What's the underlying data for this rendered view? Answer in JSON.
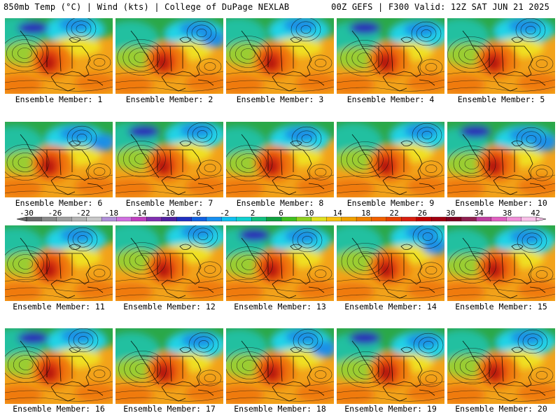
{
  "header": {
    "left": "850mb Temp (°C) | Wind (kts) | College of DuPage NEXLAB",
    "right": "00Z GEFS | F300 Valid: 12Z SAT JUN 21 2025"
  },
  "members": [
    "Ensemble Member: 1",
    "Ensemble Member: 2",
    "Ensemble Member: 3",
    "Ensemble Member: 4",
    "Ensemble Member: 5",
    "Ensemble Member: 6",
    "Ensemble Member: 7",
    "Ensemble Member: 8",
    "Ensemble Member: 9",
    "Ensemble Member: 10",
    "Ensemble Member: 11",
    "Ensemble Member: 12",
    "Ensemble Member: 13",
    "Ensemble Member: 14",
    "Ensemble Member: 15",
    "Ensemble Member: 16",
    "Ensemble Member: 17",
    "Ensemble Member: 18",
    "Ensemble Member: 19",
    "Ensemble Member: 20"
  ],
  "colorbar": {
    "labels": [
      "-30",
      "-26",
      "-22",
      "-18",
      "-14",
      "-10",
      "-6",
      "-2",
      "2",
      "6",
      "10",
      "14",
      "18",
      "22",
      "26",
      "30",
      "34",
      "38",
      "42"
    ],
    "colors": [
      "#6b6b6b",
      "#8a8a8a",
      "#a0a0a0",
      "#b4b4b4",
      "#c8c8c8",
      "#b090d8",
      "#d070e0",
      "#c040c0",
      "#8030b0",
      "#5020a0",
      "#2030c0",
      "#1060e0",
      "#1890f0",
      "#10c0f0",
      "#10d0d0",
      "#10c080",
      "#10a040",
      "#40c020",
      "#90d020",
      "#e0e020",
      "#f8c010",
      "#f0a000",
      "#f08000",
      "#f06000",
      "#e84000",
      "#d82010",
      "#c00000",
      "#a00010",
      "#800020",
      "#902050",
      "#c040a0",
      "#e060c0",
      "#f090d8",
      "#f8c0e8"
    ]
  },
  "temp_colors": {
    "cold2": "#2a2ab8",
    "cold1": "#1a8fe6",
    "cyan": "#22d3e6",
    "teal": "#20c0a0",
    "green": "#2aa84a",
    "ygreen": "#9acd32",
    "yellow": "#f0e020",
    "orange": "#f2a21a",
    "dorange": "#f07a10",
    "red": "#e03a10",
    "dred": "#b01010"
  }
}
